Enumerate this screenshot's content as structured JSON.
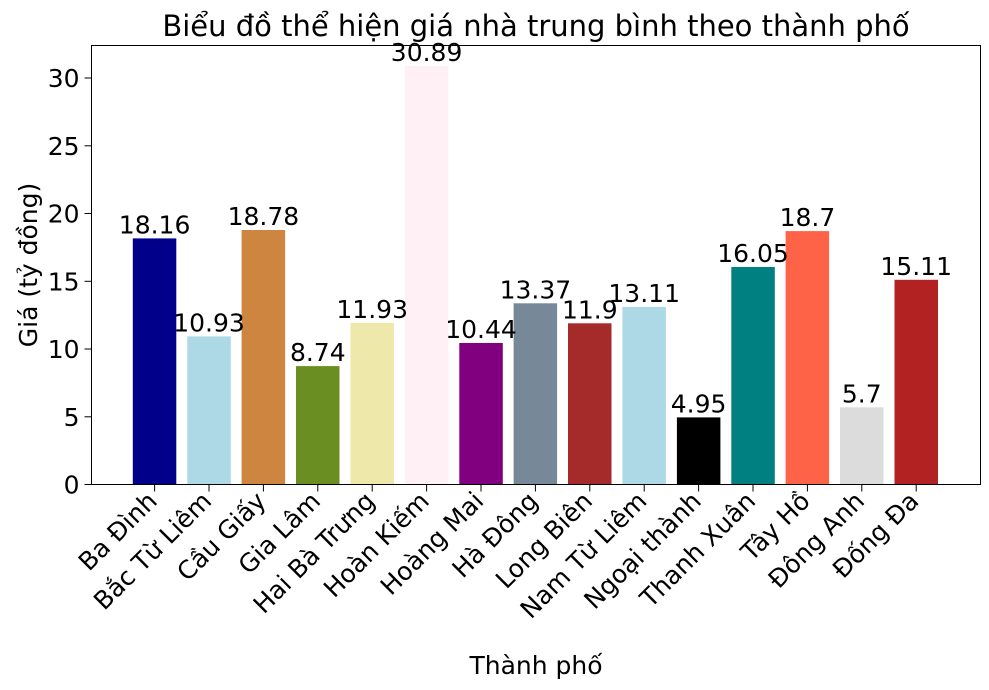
{
  "chart_data": {
    "type": "bar",
    "title": "Biểu đồ thể hiện giá nhà trung bình theo thành phố",
    "xlabel": "Thành phố",
    "ylabel": "Giá (tỷ đồng)",
    "ylim": [
      0,
      32.4
    ],
    "yticks": [
      0,
      5,
      10,
      15,
      20,
      25,
      30
    ],
    "grid": false,
    "categories": [
      "Ba Đình",
      "Bắc Từ Liêm",
      "Cầu Giấy",
      "Gia Lâm",
      "Hai Bà Trưng",
      "Hoàn Kiếm",
      "Hoàng Mai",
      "Hà Đông",
      "Long Biên",
      "Nam Từ Liêm",
      "Ngoại thành",
      "Thanh Xuân",
      "Tây Hồ",
      "Đông Anh",
      "Đống Đa"
    ],
    "values": [
      18.16,
      10.93,
      18.78,
      8.74,
      11.93,
      30.89,
      10.44,
      13.37,
      11.9,
      13.11,
      4.95,
      16.05,
      18.7,
      5.7,
      15.11
    ],
    "value_labels": [
      "18.16",
      "10.93",
      "18.78",
      "8.74",
      "11.93",
      "30.89",
      "10.44",
      "13.37",
      "11.9",
      "13.11",
      "4.95",
      "16.05",
      "18.7",
      "5.7",
      "15.11"
    ],
    "colors": [
      "#00008b",
      "#add8e6",
      "#cd853f",
      "#6b8e23",
      "#eee8aa",
      "#fff0f5",
      "#800080",
      "#778899",
      "#a52a2a",
      "#add8e6",
      "#000000",
      "#008080",
      "#ff6347",
      "#dcdcdc",
      "#b22222"
    ]
  }
}
